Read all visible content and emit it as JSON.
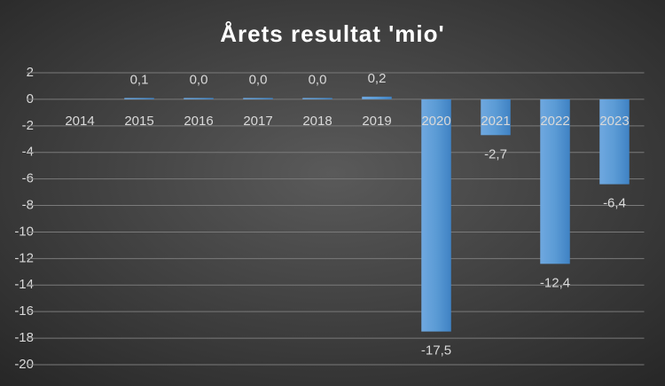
{
  "chart_data": {
    "type": "bar",
    "title": "Årets resultat 'mio'",
    "categories": [
      "2014",
      "2015",
      "2016",
      "2017",
      "2018",
      "2019",
      "2020",
      "2021",
      "2022",
      "2023"
    ],
    "values": [
      null,
      0.1,
      0.0,
      0.0,
      0.0,
      0.2,
      -17.5,
      -2.7,
      -12.4,
      -6.4
    ],
    "value_labels": [
      null,
      "0,1",
      "0,0",
      "0,0",
      "0,0",
      "0,2",
      "-17,5",
      "-2,7",
      "-12,4",
      "-6,4"
    ],
    "color": "#5b9bd5",
    "ylim": [
      -20,
      2
    ],
    "yticks": [
      2,
      0,
      -2,
      -4,
      -6,
      -8,
      -10,
      -12,
      -14,
      -16,
      -18,
      -20
    ],
    "grid": true
  }
}
